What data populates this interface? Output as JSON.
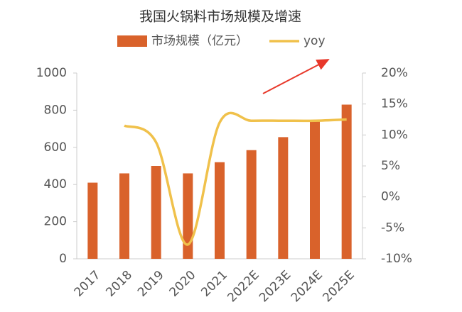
{
  "chart_data": {
    "type": "bar-line",
    "title": "我国火锅料市场规模及增速",
    "categories": [
      "2017",
      "2018",
      "2019",
      "2020",
      "2021",
      "2022E",
      "2023E",
      "2024E",
      "2025E"
    ],
    "series": [
      {
        "name": "市场规模（亿元）",
        "type": "bar",
        "color": "#d9622b",
        "values": [
          410,
          460,
          500,
          460,
          520,
          585,
          655,
          745,
          830
        ]
      },
      {
        "name": "yoy",
        "type": "line",
        "axis": "y2",
        "color": "#f0c14b",
        "values": [
          null,
          11.5,
          8.8,
          -7.7,
          12,
          12.3,
          12.3,
          12.3,
          12.5
        ]
      }
    ],
    "ylim": [
      0,
      1000
    ],
    "yticks": [
      0,
      200,
      400,
      600,
      800,
      1000
    ],
    "y2lim": [
      -10,
      20
    ],
    "y2ticks": [
      {
        "value": -10,
        "label": "-10%"
      },
      {
        "value": -5,
        "label": "-5%"
      },
      {
        "value": 0,
        "label": "0%"
      },
      {
        "value": 5,
        "label": "5%"
      },
      {
        "value": 10,
        "label": "10%"
      },
      {
        "value": 15,
        "label": "15%"
      },
      {
        "value": 20,
        "label": "20%"
      }
    ],
    "grid": false
  }
}
